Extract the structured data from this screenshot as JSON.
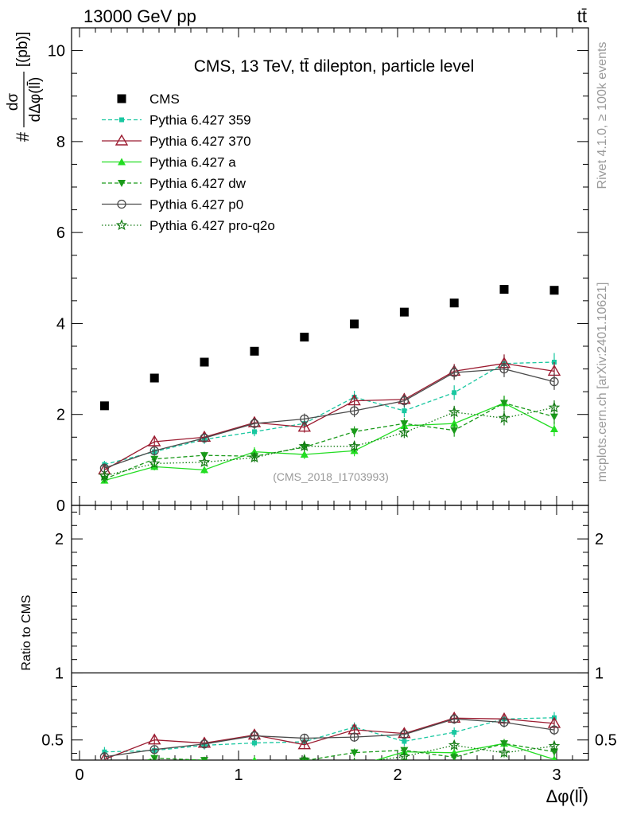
{
  "header": {
    "left": "13000 GeV pp",
    "right": "tt̄"
  },
  "side": {
    "rivet": "Rivet 4.1.0, ≥ 100k events",
    "mcplots": "mcplots.cern.ch [arXiv:2401.10621]"
  },
  "chart_data": {
    "type": "scatter",
    "title": "CMS, 13 TeV, tt̄ dilepton, particle level",
    "watermark": "(CMS_2018_I1703993)",
    "ylabel_top": "#",
    "ylabel_num": "dσ",
    "ylabel_den": "dΔφ(ll̄)",
    "ylabel_unit": "[(pb)]",
    "xlabel": "Δφ(ll̄)",
    "ratio_ylabel": "Ratio to CMS",
    "xlim": [
      -0.05,
      3.2
    ],
    "ylim": [
      0,
      10.5
    ],
    "ratio_ylim": [
      0.35,
      2.25
    ],
    "x_ticks": [
      {
        "v": 0,
        "label": "0"
      },
      {
        "v": 1,
        "label": "1"
      },
      {
        "v": 2,
        "label": "2"
      },
      {
        "v": 3,
        "label": "3"
      }
    ],
    "y_ticks": [
      {
        "v": 0,
        "label": "0"
      },
      {
        "v": 2,
        "label": "2"
      },
      {
        "v": 4,
        "label": "4"
      },
      {
        "v": 6,
        "label": "6"
      },
      {
        "v": 8,
        "label": "8"
      },
      {
        "v": 10,
        "label": "10"
      }
    ],
    "ratio_ticks": [
      {
        "v": 0.5,
        "label": "0.5"
      },
      {
        "v": 1,
        "label": "1"
      },
      {
        "v": 2,
        "label": "2"
      }
    ],
    "x": [
      0.157,
      0.471,
      0.785,
      1.1,
      1.414,
      1.728,
      2.042,
      2.356,
      2.67,
      2.985
    ],
    "data": {
      "name": "CMS",
      "values": [
        2.19,
        2.8,
        3.15,
        3.39,
        3.7,
        3.99,
        4.25,
        4.45,
        4.75,
        4.73
      ]
    },
    "series": [
      {
        "name": "Pythia 6.427 359",
        "color": "#19c7a0",
        "dash": "5,3",
        "marker": "square-small",
        "values": [
          0.9,
          1.18,
          1.45,
          1.62,
          1.8,
          2.38,
          2.08,
          2.48,
          3.12,
          3.15
        ],
        "err": [
          0.08,
          0.08,
          0.1,
          0.1,
          0.12,
          0.14,
          0.14,
          0.16,
          0.18,
          0.2
        ]
      },
      {
        "name": "Pythia 6.427 370",
        "color": "#9b1b30",
        "dash": "",
        "marker": "triangle-open",
        "values": [
          0.78,
          1.4,
          1.5,
          1.82,
          1.72,
          2.3,
          2.33,
          2.95,
          3.12,
          2.95
        ],
        "err": [
          0.08,
          0.1,
          0.1,
          0.12,
          0.12,
          0.14,
          0.14,
          0.16,
          0.2,
          0.2
        ]
      },
      {
        "name": "Pythia 6.427 a",
        "color": "#22dd22",
        "dash": "",
        "marker": "triangle-filled",
        "values": [
          0.55,
          0.85,
          0.78,
          1.18,
          1.12,
          1.2,
          1.75,
          1.8,
          2.25,
          1.68
        ],
        "err": [
          0.06,
          0.08,
          0.08,
          0.1,
          0.1,
          0.12,
          0.12,
          0.14,
          0.16,
          0.16
        ]
      },
      {
        "name": "Pythia 6.427 dw",
        "color": "#1a9a1a",
        "dash": "5,3",
        "marker": "triangle-down",
        "values": [
          0.58,
          1.02,
          1.1,
          1.08,
          1.28,
          1.62,
          1.8,
          1.65,
          2.25,
          1.95
        ],
        "err": [
          0.06,
          0.08,
          0.08,
          0.1,
          0.1,
          0.12,
          0.12,
          0.14,
          0.16,
          0.16
        ]
      },
      {
        "name": "Pythia 6.427 p0",
        "color": "#4a4a4a",
        "dash": "",
        "marker": "circle-open",
        "values": [
          0.82,
          1.2,
          1.48,
          1.8,
          1.9,
          2.08,
          2.3,
          2.92,
          3.0,
          2.72
        ],
        "err": [
          0.08,
          0.08,
          0.1,
          0.12,
          0.12,
          0.14,
          0.14,
          0.16,
          0.18,
          0.18
        ]
      },
      {
        "name": "Pythia 6.427 pro-q2o",
        "color": "#137a13",
        "dash": "1.5,2.5",
        "marker": "star",
        "values": [
          0.65,
          0.92,
          0.95,
          1.05,
          1.3,
          1.3,
          1.6,
          2.05,
          1.92,
          2.15
        ],
        "err": [
          0.06,
          0.08,
          0.08,
          0.1,
          0.1,
          0.12,
          0.12,
          0.14,
          0.16,
          0.16
        ]
      }
    ]
  }
}
